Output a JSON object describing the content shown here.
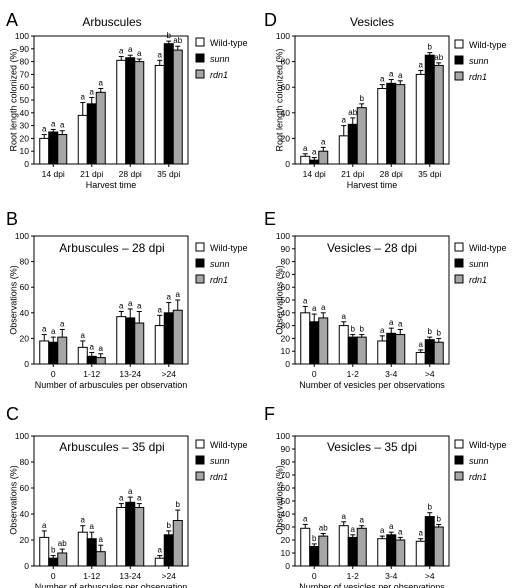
{
  "figure": {
    "legend": [
      {
        "label": "Wild-type",
        "fill": "#ffffff",
        "italic": false
      },
      {
        "label": "sunn",
        "fill": "#000000",
        "italic": true
      },
      {
        "label": "rdn1",
        "fill": "#a6a6a6",
        "italic": true
      }
    ]
  },
  "chart_data": [
    {
      "id": "A",
      "type": "bar",
      "letter": "A",
      "title": "Arbuscules",
      "xlabel": "Harvest time",
      "ylabel": "Root length colonized (%)",
      "ylim": [
        0,
        100
      ],
      "yticks": [
        0,
        10,
        20,
        30,
        40,
        50,
        60,
        70,
        80,
        90,
        100
      ],
      "categories": [
        "14 dpi",
        "21 dpi",
        "28 dpi",
        "35 dpi"
      ],
      "series": [
        {
          "name": "Wild-type",
          "values": [
            20,
            38,
            81,
            77
          ],
          "err": [
            3,
            10,
            3,
            4
          ],
          "labels": [
            "a",
            "a",
            "a",
            "a"
          ]
        },
        {
          "name": "sunn",
          "values": [
            25,
            47,
            83,
            94
          ],
          "err": [
            2,
            5,
            2,
            2
          ],
          "labels": [
            "a",
            "a",
            "a",
            "b"
          ]
        },
        {
          "name": "rdn1",
          "values": [
            23,
            56,
            80,
            89
          ],
          "err": [
            3,
            3,
            2,
            3
          ],
          "labels": [
            "a",
            "a",
            "a",
            "ab"
          ]
        }
      ],
      "legend": true
    },
    {
      "id": "D",
      "type": "bar",
      "letter": "D",
      "title": "Vesicles",
      "xlabel": "Harvest time",
      "ylabel": "Root length colonized (%)",
      "ylim": [
        0,
        100
      ],
      "yticks": [
        0,
        20,
        40,
        60,
        80,
        100
      ],
      "categories": [
        "14 dpi",
        "21 dpi",
        "28 dpi",
        "35 dpi"
      ],
      "series": [
        {
          "name": "Wild-type",
          "values": [
            6,
            22,
            59,
            70
          ],
          "err": [
            2,
            8,
            3,
            3
          ],
          "labels": [
            "a",
            "a",
            "a",
            "a"
          ]
        },
        {
          "name": "sunn",
          "values": [
            3,
            31,
            63,
            85
          ],
          "err": [
            2,
            5,
            3,
            2
          ],
          "labels": [
            "a",
            "ab",
            "a",
            "b"
          ]
        },
        {
          "name": "rdn1",
          "values": [
            10,
            44,
            62,
            77
          ],
          "err": [
            3,
            3,
            3,
            2
          ],
          "labels": [
            "a",
            "b",
            "a",
            "ab"
          ]
        }
      ],
      "legend": true
    },
    {
      "id": "B",
      "type": "bar",
      "letter": "B",
      "title": "Arbuscules – 28 dpi",
      "xlabel": "Number of arbuscules per observation",
      "ylabel": "Observations (%)",
      "ylim": [
        0,
        100
      ],
      "yticks": [
        0,
        20,
        40,
        60,
        80,
        100
      ],
      "categories": [
        "0",
        "1-12",
        "13-24",
        ">24"
      ],
      "series": [
        {
          "name": "Wild-type",
          "values": [
            18,
            13,
            37,
            30
          ],
          "err": [
            5,
            5,
            4,
            8
          ],
          "labels": [
            "a",
            "a",
            "a",
            "a"
          ]
        },
        {
          "name": "sunn",
          "values": [
            17,
            6,
            36,
            40
          ],
          "err": [
            4,
            3,
            7,
            8
          ],
          "labels": [
            "a",
            "a",
            "a",
            "a"
          ]
        },
        {
          "name": "rdn1",
          "values": [
            21,
            5,
            32,
            42
          ],
          "err": [
            6,
            3,
            9,
            8
          ],
          "labels": [
            "a",
            "a",
            "a",
            "a"
          ]
        }
      ],
      "legend": true
    },
    {
      "id": "E",
      "type": "bar",
      "letter": "E",
      "title": "Vesicles – 28 dpi",
      "xlabel": "Number of vesicles per observations",
      "ylabel": "Observations (%)",
      "ylim": [
        0,
        100
      ],
      "yticks": [
        0,
        10,
        20,
        30,
        40,
        50,
        60,
        70,
        80,
        90,
        100
      ],
      "categories": [
        "0",
        "1-2",
        "3-4",
        ">4"
      ],
      "series": [
        {
          "name": "Wild-type",
          "values": [
            40,
            30,
            18,
            9
          ],
          "err": [
            5,
            3,
            4,
            2
          ],
          "labels": [
            "a",
            "a",
            "a",
            "a"
          ]
        },
        {
          "name": "sunn",
          "values": [
            33,
            21,
            24,
            19
          ],
          "err": [
            6,
            2,
            4,
            2
          ],
          "labels": [
            "a",
            "b",
            "a",
            "b"
          ]
        },
        {
          "name": "rdn1",
          "values": [
            36,
            21,
            23,
            17
          ],
          "err": [
            4,
            2,
            4,
            3
          ],
          "labels": [
            "a",
            "b",
            "a",
            "b"
          ]
        }
      ],
      "legend": true
    },
    {
      "id": "C",
      "type": "bar",
      "letter": "C",
      "title": "Arbuscules – 35 dpi",
      "xlabel": "Number of arbuscules per observation",
      "ylabel": "Observations (%)",
      "ylim": [
        0,
        100
      ],
      "yticks": [
        0,
        20,
        40,
        60,
        80,
        100
      ],
      "categories": [
        "0",
        "1-12",
        "13-24",
        ">24"
      ],
      "series": [
        {
          "name": "Wild-type",
          "values": [
            22,
            26,
            45,
            6
          ],
          "err": [
            5,
            5,
            3,
            2
          ],
          "labels": [
            "a",
            "a",
            "a",
            "a"
          ]
        },
        {
          "name": "sunn",
          "values": [
            6,
            21,
            49,
            24
          ],
          "err": [
            2,
            5,
            4,
            3
          ],
          "labels": [
            "b",
            "a",
            "a",
            "b"
          ]
        },
        {
          "name": "rdn1",
          "values": [
            10,
            11,
            45,
            35
          ],
          "err": [
            3,
            5,
            3,
            8
          ],
          "labels": [
            "ab",
            "a",
            "a",
            "b"
          ]
        }
      ],
      "legend": true
    },
    {
      "id": "F",
      "type": "bar",
      "letter": "F",
      "title": "Vesicles – 35 dpi",
      "xlabel": "Number of vesicles per observations",
      "ylabel": "Observations (%)",
      "ylim": [
        0,
        100
      ],
      "yticks": [
        0,
        10,
        20,
        30,
        40,
        50,
        60,
        70,
        80,
        90,
        100
      ],
      "categories": [
        "0",
        "1-2",
        "3-4",
        ">4"
      ],
      "series": [
        {
          "name": "Wild-type",
          "values": [
            29,
            31,
            21,
            19
          ],
          "err": [
            3,
            3,
            2,
            2
          ],
          "labels": [
            "a",
            "a",
            "a",
            "a"
          ]
        },
        {
          "name": "sunn",
          "values": [
            15,
            22,
            24,
            38
          ],
          "err": [
            2,
            2,
            2,
            3
          ],
          "labels": [
            "b",
            "a",
            "a",
            "b"
          ]
        },
        {
          "name": "rdn1",
          "values": [
            23,
            29,
            20,
            30
          ],
          "err": [
            2,
            2,
            2,
            2
          ],
          "labels": [
            "ab",
            "a",
            "a",
            "b"
          ]
        }
      ],
      "legend": true
    }
  ]
}
